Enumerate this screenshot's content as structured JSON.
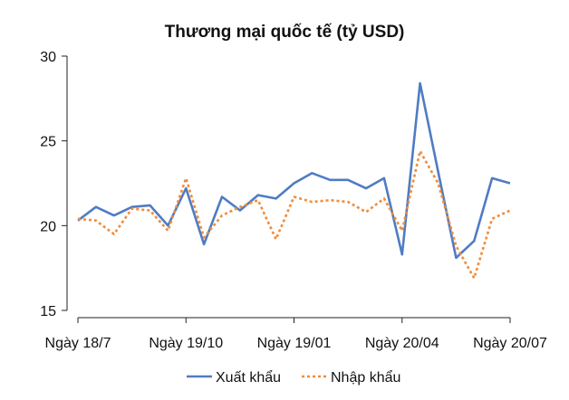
{
  "chart_data": {
    "type": "line",
    "title": "Thương mại quốc tế (tỷ USD)",
    "xlabel": "",
    "ylabel": "",
    "ylim": [
      15,
      30
    ],
    "yticks": [
      15,
      20,
      25,
      30
    ],
    "x_tick_labels": [
      "Ngày 18/7",
      "Ngày 19/10",
      "Ngày 19/01",
      "Ngày 20/04",
      "Ngày 20/07"
    ],
    "x_tick_indices": [
      0,
      6,
      12,
      18,
      24
    ],
    "grid": false,
    "legend_position": "bottom",
    "series": [
      {
        "name": "Xuất khẩu",
        "color": "#4f7cc3",
        "style": "solid",
        "values": [
          20.3,
          21.1,
          20.6,
          21.1,
          21.2,
          20.0,
          22.2,
          18.9,
          21.7,
          20.9,
          21.8,
          21.6,
          22.5,
          23.1,
          22.7,
          22.7,
          22.2,
          22.8,
          18.3,
          28.4,
          23.2,
          18.1,
          19.1,
          22.8,
          22.5
        ]
      },
      {
        "name": "Nhập khẩu",
        "color": "#f08c3a",
        "style": "dotted",
        "values": [
          20.4,
          20.3,
          19.5,
          21.0,
          20.9,
          19.7,
          22.8,
          19.3,
          20.6,
          21.1,
          21.5,
          19.2,
          21.7,
          21.4,
          21.5,
          21.4,
          20.8,
          21.6,
          19.7,
          24.4,
          22.5,
          18.8,
          16.9,
          20.4,
          20.9
        ]
      }
    ]
  }
}
